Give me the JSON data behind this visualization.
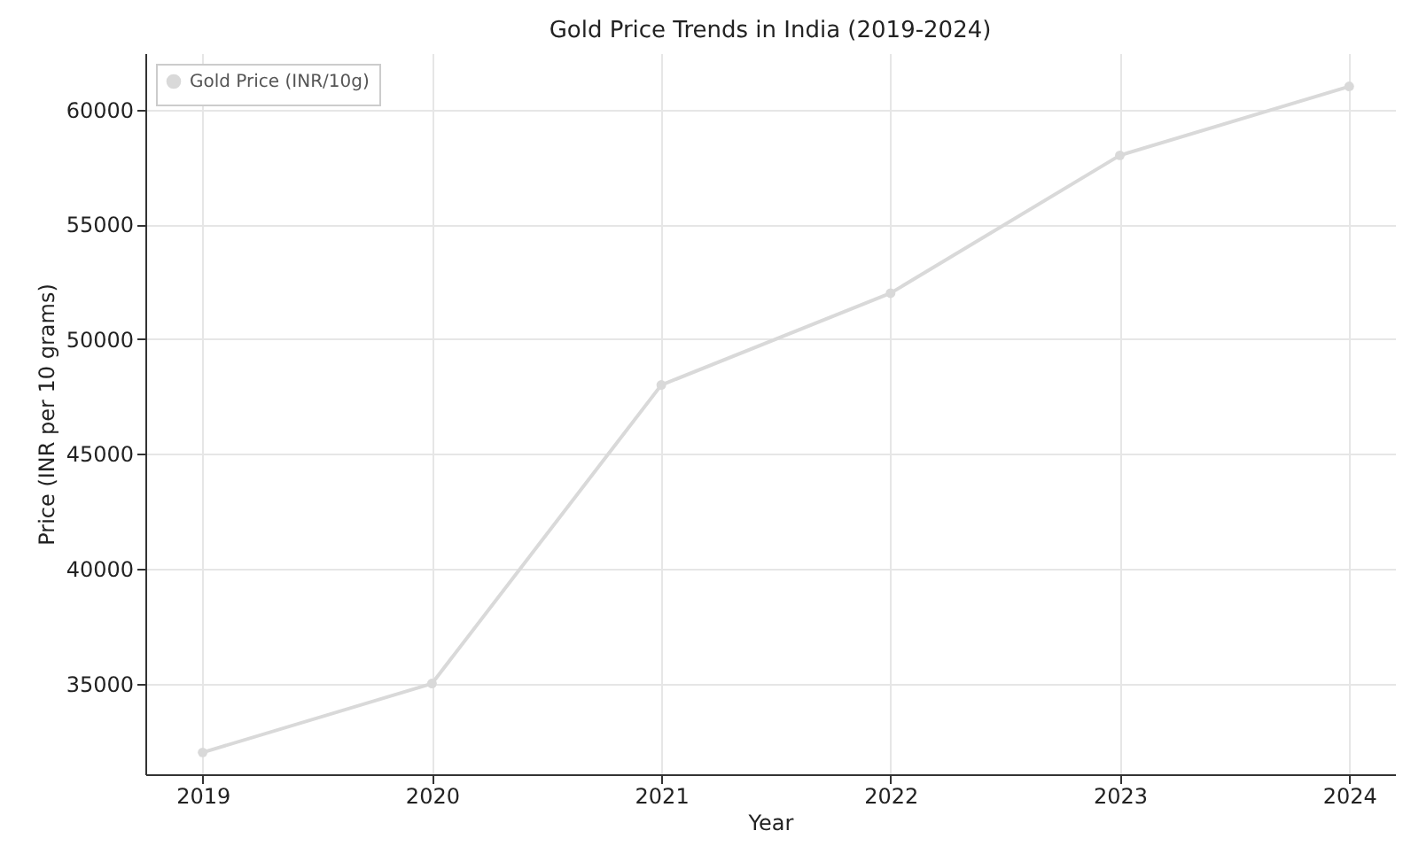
{
  "chart_data": {
    "type": "line",
    "title": "Gold Price Trends in India (2019-2024)",
    "xlabel": "Year",
    "ylabel": "Price (INR per 10 grams)",
    "x": [
      2019,
      2020,
      2021,
      2022,
      2023,
      2024
    ],
    "series": [
      {
        "name": "Gold Price (INR/10g)",
        "color": "#d9d9d9",
        "values": [
          32000,
          35000,
          48000,
          52000,
          58000,
          61000
        ]
      }
    ],
    "xlim": [
      2018.75,
      2024.2
    ],
    "xticks": [
      2019,
      2020,
      2021,
      2022,
      2023,
      2024
    ],
    "ylim": [
      31050,
      62450
    ],
    "yticks": [
      35000,
      40000,
      45000,
      50000,
      55000,
      60000
    ],
    "grid": true,
    "legend": "top left",
    "marker": "circle",
    "line_style": "solid"
  }
}
